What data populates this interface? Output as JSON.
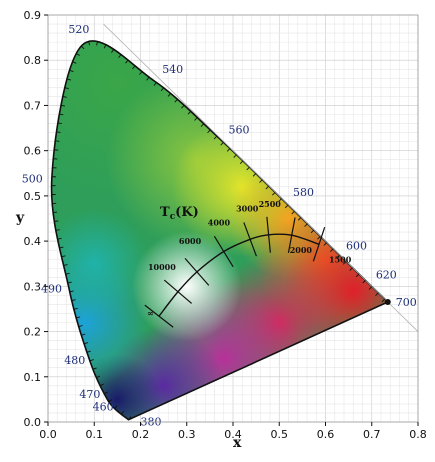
{
  "chart_data": {
    "type": "scatter",
    "title": "",
    "xlabel": "x",
    "ylabel": "y",
    "xlim": [
      0.0,
      0.8
    ],
    "ylim": [
      0.0,
      0.9
    ],
    "grid": true,
    "x_ticks": [
      0.0,
      0.1,
      0.2,
      0.3,
      0.4,
      0.5,
      0.6,
      0.7,
      0.8
    ],
    "y_ticks": [
      0.0,
      0.1,
      0.2,
      0.3,
      0.4,
      0.5,
      0.6,
      0.7,
      0.8,
      0.9
    ],
    "x_tick_labels": [
      "0.0",
      "0.1",
      "0.2",
      "0.3",
      "0.4",
      "0.5",
      "0.6",
      "0.7",
      "0.8"
    ],
    "y_tick_labels": [
      "0.0",
      "0.1",
      "0.2",
      "0.3",
      "0.4",
      "0.5",
      "0.6",
      "0.7",
      "0.8",
      "0.9"
    ],
    "spectral_locus": [
      {
        "nm": 380,
        "x": 0.1741,
        "y": 0.005
      },
      {
        "nm": 460,
        "x": 0.144,
        "y": 0.0297
      },
      {
        "nm": 470,
        "x": 0.1241,
        "y": 0.0578
      },
      {
        "nm": 480,
        "x": 0.0913,
        "y": 0.1327
      },
      {
        "nm": 490,
        "x": 0.0454,
        "y": 0.295
      },
      {
        "nm": 500,
        "x": 0.0082,
        "y": 0.5384
      },
      {
        "nm": 520,
        "x": 0.0743,
        "y": 0.8338
      },
      {
        "nm": 540,
        "x": 0.2296,
        "y": 0.7543
      },
      {
        "nm": 560,
        "x": 0.3731,
        "y": 0.6245
      },
      {
        "nm": 580,
        "x": 0.5125,
        "y": 0.4866
      },
      {
        "nm": 600,
        "x": 0.627,
        "y": 0.3725
      },
      {
        "nm": 620,
        "x": 0.6915,
        "y": 0.3083
      },
      {
        "nm": 700,
        "x": 0.7347,
        "y": 0.2653
      }
    ],
    "wavelength_labels": [
      "380",
      "460",
      "470",
      "480",
      "490",
      "500",
      "520",
      "540",
      "560",
      "580",
      "600",
      "620",
      "700"
    ],
    "planckian_locus_title": "Tc(K)",
    "planckian_locus": [
      {
        "T": "∞",
        "x": 0.24,
        "y": 0.234
      },
      {
        "T": "10000",
        "x": 0.281,
        "y": 0.288
      },
      {
        "T": "6000",
        "x": 0.322,
        "y": 0.332
      },
      {
        "T": "4000",
        "x": 0.38,
        "y": 0.377
      },
      {
        "T": "3000",
        "x": 0.437,
        "y": 0.404
      },
      {
        "T": "2500",
        "x": 0.477,
        "y": 0.414
      },
      {
        "T": "2000",
        "x": 0.527,
        "y": 0.413
      },
      {
        "T": "1500",
        "x": 0.586,
        "y": 0.393
      }
    ]
  }
}
